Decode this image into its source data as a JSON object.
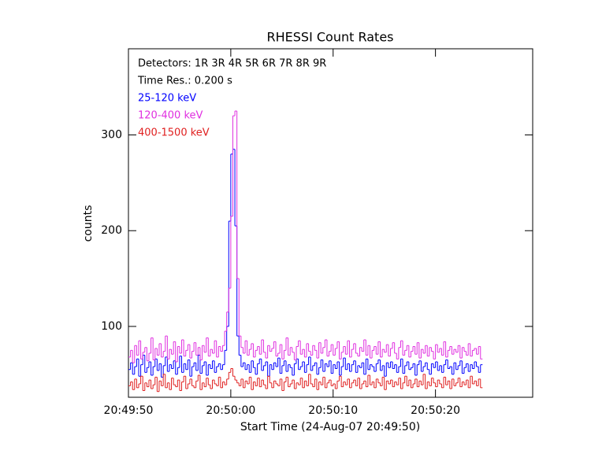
{
  "chart_data": {
    "type": "step",
    "title": "RHESSI Count Rates",
    "x_label": "Start Time (24-Aug-07 20:49:50)",
    "y_label": "counts",
    "annotations": [
      "Detectors:  1R 3R 4R 5R 6R 7R 8R 9R",
      "Time Res.: 0.200 s"
    ],
    "xlim": [
      0,
      39.5
    ],
    "xticks": [
      {
        "value": 0,
        "label": "20:49:50"
      },
      {
        "value": 10,
        "label": "20:50:00"
      },
      {
        "value": 20,
        "label": "20:50:10"
      },
      {
        "value": 30,
        "label": "20:50:20"
      }
    ],
    "ylim": [
      26,
      390
    ],
    "yticks": [
      100,
      200,
      300
    ],
    "x": [
      0,
      0.2,
      0.4,
      0.6,
      0.8,
      1,
      1.2,
      1.4,
      1.6,
      1.8,
      2,
      2.2,
      2.4,
      2.6,
      2.8,
      3,
      3.2,
      3.4,
      3.6,
      3.8,
      4,
      4.2,
      4.4,
      4.6,
      4.8,
      5,
      5.2,
      5.4,
      5.6,
      5.8,
      6,
      6.2,
      6.4,
      6.6,
      6.8,
      7,
      7.2,
      7.4,
      7.6,
      7.8,
      8,
      8.2,
      8.4,
      8.6,
      8.8,
      9,
      9.2,
      9.4,
      9.6,
      9.8,
      10,
      10.2,
      10.4,
      10.6,
      10.8,
      11,
      11.2,
      11.4,
      11.6,
      11.8,
      12,
      12.2,
      12.4,
      12.6,
      12.8,
      13,
      13.2,
      13.4,
      13.6,
      13.8,
      14,
      14.2,
      14.4,
      14.6,
      14.8,
      15,
      15.2,
      15.4,
      15.6,
      15.8,
      16,
      16.2,
      16.4,
      16.6,
      16.8,
      17,
      17.2,
      17.4,
      17.6,
      17.8,
      18,
      18.2,
      18.4,
      18.6,
      18.8,
      19,
      19.2,
      19.4,
      19.6,
      19.8,
      20,
      20.2,
      20.4,
      20.6,
      20.8,
      21,
      21.2,
      21.4,
      21.6,
      21.8,
      22,
      22.2,
      22.4,
      22.6,
      22.8,
      23,
      23.2,
      23.4,
      23.6,
      23.8,
      24,
      24.2,
      24.4,
      24.6,
      24.8,
      25,
      25.2,
      25.4,
      25.6,
      25.8,
      26,
      26.2,
      26.4,
      26.6,
      26.8,
      27,
      27.2,
      27.4,
      27.6,
      27.8,
      28,
      28.2,
      28.4,
      28.6,
      28.8,
      29,
      29.2,
      29.4,
      29.6,
      29.8,
      30,
      30.2,
      30.4,
      30.6,
      30.8,
      31,
      31.2,
      31.4,
      31.6,
      31.8,
      32,
      32.2,
      32.4,
      32.6,
      32.8,
      33,
      33.2,
      33.4,
      33.6,
      33.8,
      34,
      34.2,
      34.4
    ],
    "series": [
      {
        "name": "25-120 keV",
        "color": "#0000ff",
        "values": [
          55,
          62,
          50,
          58,
          66,
          48,
          60,
          70,
          52,
          57,
          63,
          49,
          58,
          66,
          54,
          61,
          47,
          59,
          68,
          53,
          60,
          56,
          64,
          50,
          57,
          69,
          52,
          61,
          55,
          65,
          48,
          58,
          62,
          54,
          70,
          51,
          59,
          63,
          49,
          60,
          56,
          64,
          52,
          58,
          61,
          55,
          60,
          75,
          100,
          210,
          280,
          285,
          205,
          90,
          70,
          58,
          62,
          55,
          60,
          52,
          64,
          57,
          50,
          61,
          66,
          54,
          59,
          63,
          48,
          60,
          55,
          62,
          58,
          67,
          51,
          59,
          64,
          53,
          60,
          57,
          49,
          61,
          66,
          55,
          58,
          63,
          52,
          60,
          68,
          54,
          59,
          62,
          50,
          57,
          65,
          53,
          61,
          58,
          64,
          51,
          60,
          56,
          63,
          49,
          58,
          67,
          55,
          61,
          53,
          60,
          64,
          52,
          59,
          57,
          62,
          50,
          66,
          55,
          60,
          58,
          53,
          61,
          65,
          54,
          59,
          48,
          62,
          57,
          63,
          56,
          60,
          52,
          58,
          66,
          51,
          59,
          63,
          55,
          57,
          61,
          49,
          60,
          64,
          53,
          58,
          62,
          55,
          50,
          61,
          57,
          63,
          54,
          59,
          52,
          60,
          65,
          56,
          58,
          50,
          62,
          55,
          59,
          64,
          51,
          57,
          61,
          53,
          60,
          56,
          63,
          58,
          52,
          60
        ]
      },
      {
        "name": "120-400 keV",
        "color": "#e030e0",
        "values": [
          68,
          75,
          62,
          80,
          70,
          85,
          66,
          73,
          78,
          64,
          72,
          88,
          65,
          77,
          70,
          82,
          68,
          74,
          90,
          66,
          76,
          71,
          84,
          63,
          79,
          72,
          86,
          69,
          75,
          81,
          67,
          74,
          83,
          70,
          78,
          65,
          80,
          73,
          88,
          69,
          76,
          72,
          85,
          68,
          79,
          74,
          80,
          95,
          115,
          140,
          215,
          320,
          325,
          150,
          90,
          78,
          72,
          85,
          70,
          76,
          82,
          68,
          75,
          79,
          71,
          86,
          73,
          67,
          80,
          74,
          77,
          84,
          69,
          72,
          81,
          66,
          75,
          88,
          70,
          78,
          73,
          65,
          79,
          85,
          71,
          76,
          68,
          82,
          74,
          70,
          80,
          75,
          67,
          83,
          72,
          78,
          86,
          69,
          74,
          81,
          70,
          77,
          84,
          66,
          73,
          79,
          71,
          85,
          68,
          76,
          82,
          72,
          69,
          78,
          74,
          86,
          70,
          80,
          67,
          75,
          79,
          71,
          84,
          68,
          76,
          73,
          81,
          69,
          77,
          83,
          72,
          66,
          78,
          85,
          70,
          75,
          80,
          68,
          74,
          79,
          71,
          83,
          67,
          76,
          72,
          80,
          69,
          78,
          74,
          66,
          81,
          73,
          77,
          70,
          84,
          68,
          75,
          79,
          71,
          76,
          73,
          80,
          67,
          78,
          74,
          70,
          82,
          69,
          75,
          77,
          71,
          79,
          66
        ]
      },
      {
        "name": "400-1500 keV",
        "color": "#e02020",
        "values": [
          38,
          42,
          34,
          45,
          36,
          40,
          48,
          33,
          41,
          37,
          44,
          35,
          39,
          47,
          32,
          43,
          38,
          50,
          36,
          41,
          34,
          46,
          39,
          37,
          44,
          33,
          42,
          48,
          35,
          40,
          45,
          38,
          36,
          43,
          49,
          34,
          41,
          37,
          46,
          39,
          35,
          44,
          40,
          38,
          47,
          36,
          42,
          39,
          45,
          52,
          56,
          48,
          44,
          41,
          38,
          45,
          36,
          43,
          40,
          47,
          34,
          42,
          38,
          46,
          37,
          44,
          39,
          35,
          48,
          41,
          36,
          43,
          40,
          38,
          45,
          33,
          42,
          47,
          37,
          40,
          44,
          35,
          41,
          39,
          46,
          36,
          43,
          38,
          50,
          40,
          37,
          45,
          34,
          42,
          39,
          47,
          36,
          41,
          44,
          38,
          40,
          35,
          43,
          48,
          37,
          42,
          39,
          45,
          36,
          41,
          44,
          38,
          46,
          35,
          40,
          43,
          37,
          49,
          39,
          42,
          36,
          45,
          41,
          38,
          47,
          34,
          43,
          40,
          44,
          37,
          42,
          39,
          46,
          35,
          41,
          48,
          38,
          44,
          36,
          40,
          45,
          37,
          43,
          39,
          50,
          35,
          42,
          38,
          46,
          41,
          37,
          44,
          40,
          36,
          47,
          39,
          43,
          35,
          45,
          38,
          41,
          46,
          37,
          42,
          39,
          44,
          36,
          48,
          40,
          43,
          38,
          45,
          36
        ]
      }
    ]
  }
}
